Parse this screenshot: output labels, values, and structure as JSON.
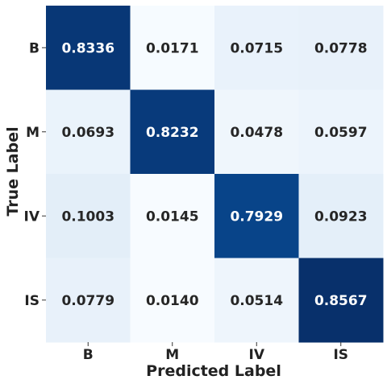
{
  "chart_data": {
    "type": "heatmap",
    "title": "",
    "xlabel": "Predicted Label",
    "ylabel": "True Label",
    "x_categories": [
      "B",
      "M",
      "IV",
      "IS"
    ],
    "y_categories": [
      "B",
      "M",
      "IV",
      "IS"
    ],
    "values": [
      [
        0.8336,
        0.0171,
        0.0715,
        0.0778
      ],
      [
        0.0693,
        0.8232,
        0.0478,
        0.0597
      ],
      [
        0.1003,
        0.0145,
        0.7929,
        0.0923
      ],
      [
        0.0779,
        0.014,
        0.0514,
        0.8567
      ]
    ],
    "value_labels": [
      [
        "0.8336",
        "0.0171",
        "0.0715",
        "0.0778"
      ],
      [
        "0.0693",
        "0.8232",
        "0.0478",
        "0.0597"
      ],
      [
        "0.1003",
        "0.0145",
        "0.7929",
        "0.0923"
      ],
      [
        "0.0779",
        "0.0140",
        "0.0514",
        "0.8567"
      ]
    ],
    "colormap": "Blues",
    "color_low": "#f7fbff",
    "color_high": "#08306b",
    "legend": "none",
    "grid": false
  }
}
